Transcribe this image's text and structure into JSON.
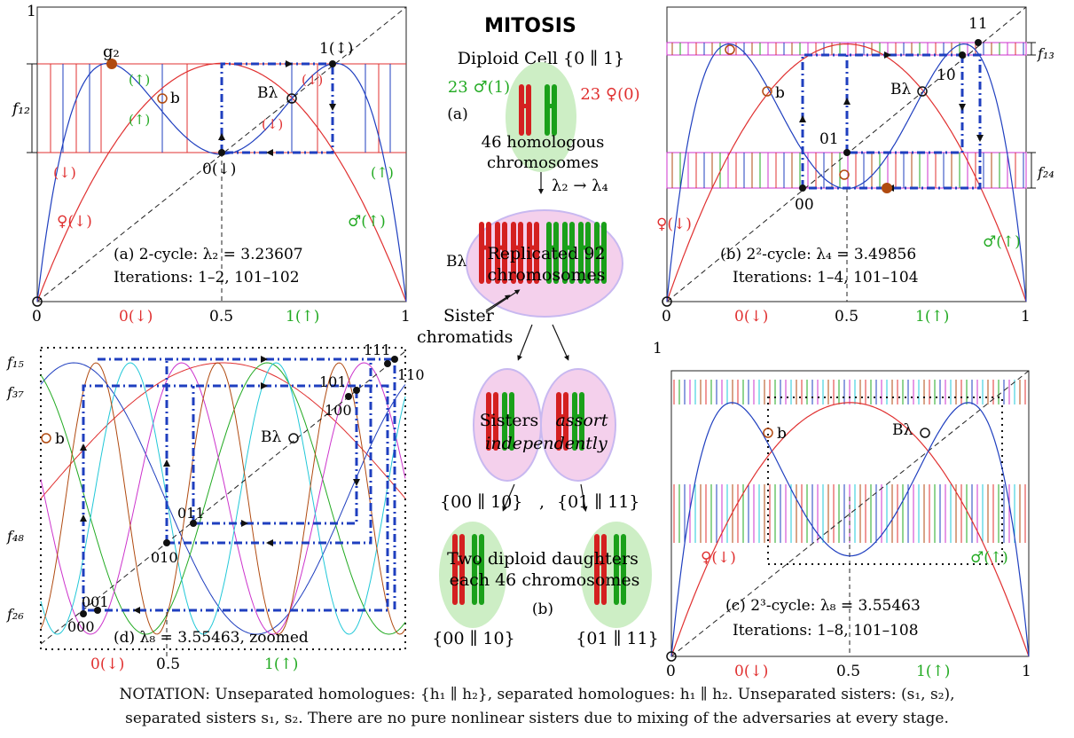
{
  "mitosis": {
    "title": "MITOSIS",
    "diploid_label": "Diploid Cell {0 ∥ 1}",
    "male_count": "23 ♂(1)",
    "female_count": "23 ♀(0)",
    "label_a": "(a)",
    "cell_text": [
      "46 homologous",
      "chromosomes"
    ],
    "arrow_lambda": "λ₂ → λ₄",
    "b_lambda": "Bλ",
    "replicated": [
      "Replicated 92",
      "chromosomes"
    ],
    "sister": [
      "Sister",
      "chromatids"
    ],
    "assort": [
      "Sisters",
      "assort",
      "independently"
    ],
    "pair1": "{00 ∥ 10}",
    "comma": ",",
    "pair2": "{01 ∥ 11}",
    "daughters": [
      "Two diploid daughters",
      "each 46 chromosomes"
    ],
    "label_b": "(b)",
    "daughter1": "{00 ∥ 10}",
    "daughter2": "{01 ∥ 11}"
  },
  "panel_a": {
    "y_top": "1",
    "x_ticks": [
      "0",
      "0.5",
      "1"
    ],
    "x_mid_labels": [
      "0(↓)",
      "1(↑)"
    ],
    "f_label": "f₁₂",
    "g2": "g₂",
    "b": "b",
    "b_lambda": "Bλ",
    "point1": "1(↕)",
    "point0": "0(↓)",
    "arrows": [
      "(↑)",
      "(↓)",
      "(↓)",
      "(↑)",
      "(↓)",
      "(↑)"
    ],
    "female": "♀(↓)",
    "male": "♂(↑)",
    "caption1": "(a) 2-cycle: λ₂ = 3.23607",
    "caption2": "Iterations: 1–2, 101–102"
  },
  "panel_b": {
    "x_ticks": [
      "0",
      "0.5",
      "1"
    ],
    "x_mid_labels": [
      "0(↓)",
      "1(↑)"
    ],
    "f_labels": [
      "f₁₃",
      "f₂₄"
    ],
    "points": [
      "11",
      "10",
      "01",
      "00"
    ],
    "b": "b",
    "b_lambda": "Bλ",
    "female": "♀(↓)",
    "male": "♂(↑)",
    "caption1": "(b) 2²-cycle: λ₄ = 3.49856",
    "caption2": "Iterations: 1–4, 101–104"
  },
  "panel_c": {
    "y_top": "1",
    "x_ticks": [
      "0",
      "0.5",
      "1"
    ],
    "x_mid_labels": [
      "0(↓)",
      "1(↑)"
    ],
    "b": "b",
    "b_lambda": "Bλ",
    "female": "♀(↓)",
    "male": "♂(↑)",
    "caption1": "(c) 2³-cycle: λ₈ = 3.55463",
    "caption2": "Iterations: 1–8, 101–108"
  },
  "panel_d": {
    "f_labels": [
      "f₁₅",
      "f₃₇",
      "f₄₈",
      "f₂₆"
    ],
    "points": [
      "111",
      "110",
      "101",
      "100",
      "011",
      "010",
      "001",
      "000"
    ],
    "b": "b",
    "b_lambda": "Bλ",
    "caption": "(d) λ₈ = 3.55463, zoomed",
    "x_labels": [
      "0(↓)",
      "0.5",
      "1(↑)"
    ]
  },
  "notation": {
    "line1": "NOTATION: Unseparated homologues: {h₁ ∥ h₂}, separated homologues: h₁ ∥ h₂. Unseparated sisters: (s₁, s₂),",
    "line2": "separated sisters s₁, s₂. There are no pure nonlinear sisters due to mixing of the adversaries at every stage."
  },
  "colors": {
    "red": "#e03030",
    "green": "#22aa22",
    "blue": "#1f3fbf",
    "magenta": "#cc33cc",
    "cyan": "#22c8d8",
    "brown": "#b04a10"
  }
}
